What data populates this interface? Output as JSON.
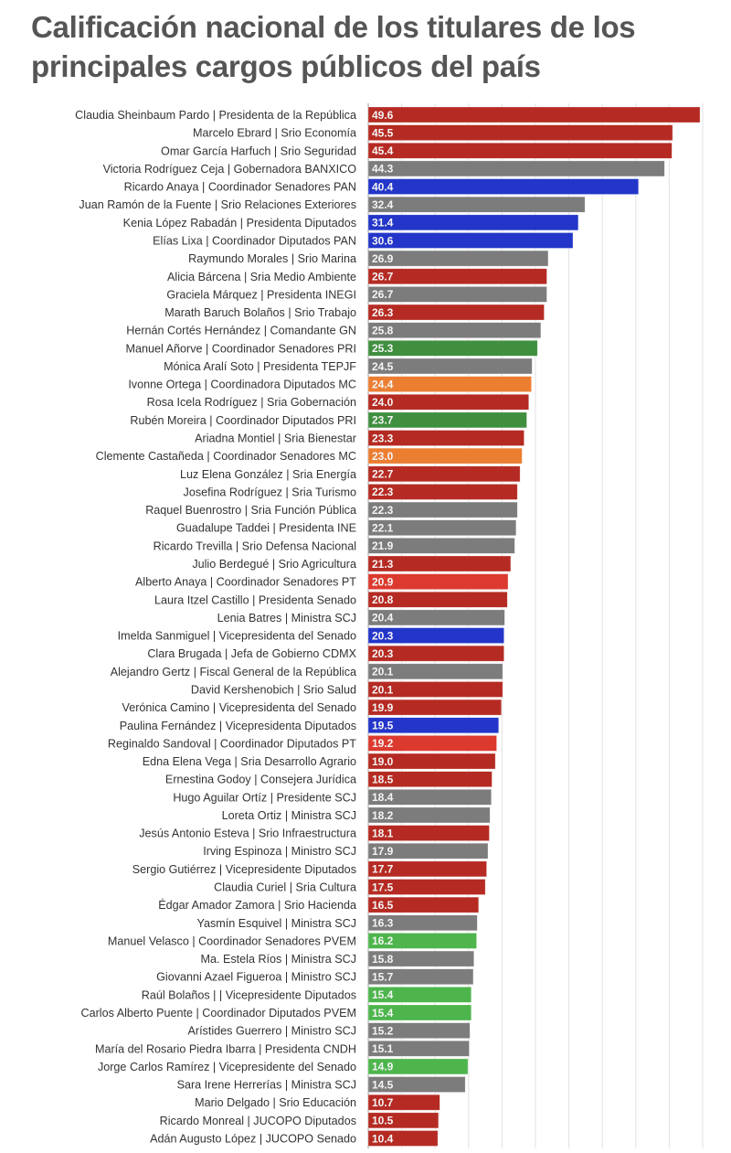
{
  "title_lines": [
    "Calificación nacional de los titulares de los",
    "principales cargos públicos del país"
  ],
  "colors": {
    "red": "#b52b23",
    "lightred": "#dc3a2e",
    "gray": "#7c7c7c",
    "blue": "#2336c9",
    "green": "#3f8f3f",
    "lightgreen": "#4db54c",
    "orange": "#ec7e32"
  },
  "chart_data": {
    "type": "bar",
    "orientation": "horizontal",
    "title": "Calificación nacional de los titulares de los principales cargos públicos del país",
    "xlim": [
      0,
      50
    ],
    "grid_step": 5,
    "grid": true,
    "categories": [
      "Claudia Sheinbaum Pardo | Presidenta de la República",
      "Marcelo Ebrard | Srio Economía",
      "Omar García Harfuch | Srio Seguridad",
      "Victoria Rodríguez Ceja | Gobernadora BANXICO",
      "Ricardo Anaya | Coordinador Senadores PAN",
      "Juan Ramón de la Fuente | Srio Relaciones Exteriores",
      "Kenia López Rabadán | Presidenta Diputados",
      "Elías Lixa | Coordinador Diputados PAN",
      "Raymundo Morales | Srio Marina",
      "Alicia Bárcena | Sria Medio Ambiente",
      "Graciela Márquez | Presidenta INEGI",
      "Marath Baruch Bolaños | Srio Trabajo",
      "Hernán Cortés Hernández | Comandante GN",
      "Manuel Añorve | Coordinador Senadores PRI",
      "Mónica Aralí Soto | Presidenta TEPJF",
      "Ivonne Ortega | Coordinadora Diputados MC",
      "Rosa Icela Rodríguez | Sria Gobernación",
      "Rubén Moreira | Coordinador Diputados PRI",
      "Ariadna Montiel | Sria Bienestar",
      "Clemente Castañeda | Coordinador Senadores MC",
      "Luz Elena González | Sria Energía",
      "Josefina Rodríguez | Sria Turismo",
      "Raquel Buenrostro | Sria Función Pública",
      "Guadalupe Taddei | Presidenta INE",
      "Ricardo Trevilla | Srio Defensa Nacional",
      "Julio Berdegué | Srio Agricultura",
      "Alberto Anaya | Coordinador Senadores PT",
      "Laura Itzel Castillo | Presidenta Senado",
      "Lenia Batres | Ministra SCJ",
      "Imelda Sanmiguel | Vicepresidenta del Senado",
      "Clara Brugada | Jefa de Gobierno CDMX",
      "Alejandro Gertz | Fiscal General de la República",
      "David Kershenobich | Srio Salud",
      "Verónica Camino | Vicepresidenta del Senado",
      "Paulina Fernández | Vicepresidenta Diputados",
      "Reginaldo Sandoval | Coordinador Diputados PT",
      "Edna Elena Vega | Sria Desarrollo Agrario",
      "Ernestina Godoy | Consejera Jurídica",
      "Hugo Aguilar Ortíz | Presidente  SCJ",
      "Loreta Ortiz | Ministra SCJ",
      "Jesús Antonio Esteva | Srio Infraestructura",
      "Irving Espinoza | Ministro SCJ",
      "Sergio Gutiérrez | Vicepresidente Diputados",
      "Claudia Curiel | Sria Cultura",
      "Édgar Amador Zamora | Srio Hacienda",
      "Yasmín Esquivel | Ministra SCJ",
      "Manuel Velasco | Coordinador Senadores PVEM",
      "Ma. Estela Ríos | Ministra SCJ",
      "Giovanni Azael Figueroa | Ministro SCJ",
      "Raúl Bolaños | | Vicepresidente Diputados",
      "Carlos Alberto Puente | Coordinador Diputados PVEM",
      "Arístides Guerrero | Ministro SCJ",
      "María del Rosario Piedra Ibarra | Presidenta CNDH",
      "Jorge Carlos Ramírez | Vicepresidente del Senado",
      "Sara Irene Herrerías | Ministra SCJ",
      "Mario Delgado | Srio Educación",
      "Ricardo Monreal | JUCOPO Diputados",
      "Adán Augusto López | JUCOPO Senado"
    ],
    "values": [
      49.6,
      45.5,
      45.4,
      44.3,
      40.4,
      32.4,
      31.4,
      30.6,
      26.9,
      26.7,
      26.7,
      26.3,
      25.8,
      25.3,
      24.5,
      24.4,
      24.0,
      23.7,
      23.3,
      23.0,
      22.7,
      22.3,
      22.3,
      22.1,
      21.9,
      21.3,
      20.9,
      20.8,
      20.4,
      20.3,
      20.3,
      20.1,
      20.1,
      19.9,
      19.5,
      19.2,
      19.0,
      18.5,
      18.4,
      18.2,
      18.1,
      17.9,
      17.7,
      17.5,
      16.5,
      16.3,
      16.2,
      15.8,
      15.7,
      15.4,
      15.4,
      15.2,
      15.1,
      14.9,
      14.5,
      10.7,
      10.5,
      10.4
    ],
    "value_labels": [
      "49.6",
      "45.5",
      "45.4",
      "44.3",
      "40.4",
      "32.4",
      "31.4",
      "30.6",
      "26.9",
      "26.7",
      "26.7",
      "26.3",
      "25.8",
      "25.3",
      "24.5",
      "24.4",
      "24.0",
      "23.7",
      "23.3",
      "23.0",
      "22.7",
      "22.3",
      "22.3",
      "22.1",
      "21.9",
      "21.3",
      "20.9",
      "20.8",
      "20.4",
      "20.3",
      "20.3",
      "20.1",
      "20.1",
      "19.9",
      "19.5",
      "19.2",
      "19.0",
      "18.5",
      "18.4",
      "18.2",
      "18.1",
      "17.9",
      "17.7",
      "17.5",
      "16.5",
      "16.3",
      "16.2",
      "15.8",
      "15.7",
      "15.4",
      "15.4",
      "15.2",
      "15.1",
      "14.9",
      "14.5",
      "10.7",
      "10.5",
      "10.4"
    ],
    "bar_colors": [
      "red",
      "red",
      "red",
      "gray",
      "blue",
      "gray",
      "blue",
      "blue",
      "gray",
      "red",
      "gray",
      "red",
      "gray",
      "green",
      "gray",
      "orange",
      "red",
      "green",
      "red",
      "orange",
      "red",
      "red",
      "gray",
      "gray",
      "gray",
      "red",
      "lightred",
      "red",
      "gray",
      "blue",
      "red",
      "gray",
      "red",
      "red",
      "blue",
      "lightred",
      "red",
      "red",
      "gray",
      "gray",
      "red",
      "gray",
      "red",
      "red",
      "red",
      "gray",
      "lightgreen",
      "gray",
      "gray",
      "lightgreen",
      "lightgreen",
      "gray",
      "gray",
      "lightgreen",
      "gray",
      "red",
      "red",
      "red"
    ]
  }
}
